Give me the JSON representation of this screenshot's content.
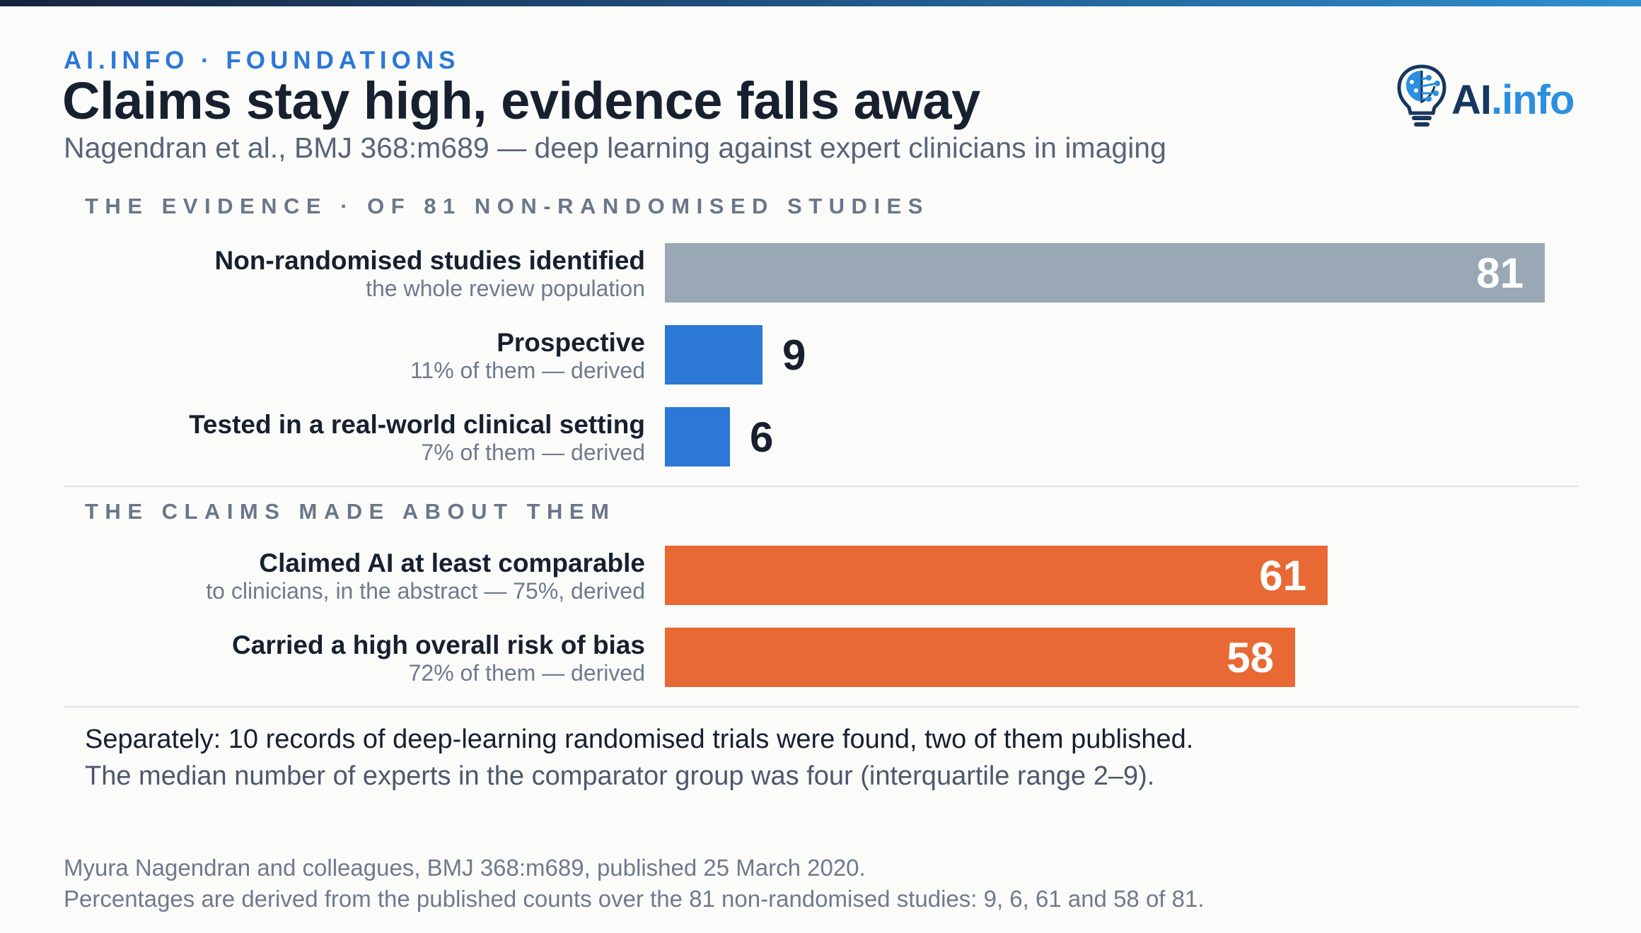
{
  "header": {
    "kicker": "AI.INFO · FOUNDATIONS",
    "title": "Claims stay high, evidence falls away",
    "subtitle": "Nagendran et al., BMJ 368:m689 — deep learning against expert clinicians in imaging"
  },
  "logo": {
    "icon": "lightbulb-brain-icon",
    "text_ai": "AI",
    "text_info": ".info"
  },
  "colors": {
    "neutral": "#9aa7b4",
    "evidence": "#2b78d6",
    "claims": "#e86934",
    "text": "#17202e",
    "accent": "#2b78d6"
  },
  "chart_data": {
    "type": "bar",
    "orientation": "horizontal",
    "xlim": [
      0,
      81
    ],
    "groups": [
      {
        "heading": "THE EVIDENCE · OF 81 NON-RANDOMISED STUDIES",
        "bars": [
          {
            "label": "Non-randomised studies identified",
            "sublabel": "the whole review population",
            "value": 81,
            "value_label": "81",
            "color": "#9aa7b4"
          },
          {
            "label": "Prospective",
            "sublabel": "11% of them — derived",
            "value": 9,
            "value_label": "9",
            "color": "#2b78d6"
          },
          {
            "label": "Tested in a real-world clinical setting",
            "sublabel": "7% of them — derived",
            "value": 6,
            "value_label": "6",
            "color": "#2b78d6"
          }
        ]
      },
      {
        "heading": "THE CLAIMS MADE ABOUT THEM",
        "bars": [
          {
            "label": "Claimed AI at least comparable",
            "sublabel": "to clinicians, in the abstract — 75%, derived",
            "value": 61,
            "value_label": "61",
            "color": "#e86934"
          },
          {
            "label": "Carried a high overall risk of bias",
            "sublabel": "72% of them — derived",
            "value": 58,
            "value_label": "58",
            "color": "#e86934"
          }
        ]
      }
    ]
  },
  "notes": {
    "line1": "Separately: 10 records of deep-learning randomised trials were found, two of them published.",
    "line2": "The median number of experts in the comparator group was four (interquartile range 2–9)."
  },
  "footer": {
    "line1": "Myura Nagendran and colleagues, BMJ 368:m689, published 25 March 2020.",
    "line2": "Percentages are derived from the published counts over the 81 non-randomised studies: 9, 6, 61 and 58 of 81."
  }
}
